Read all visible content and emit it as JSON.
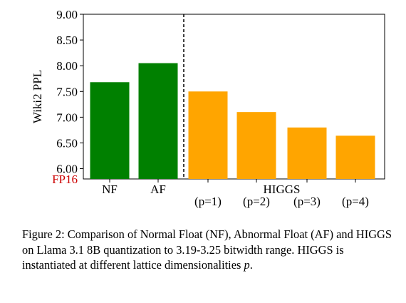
{
  "chart_data": {
    "type": "bar",
    "ylabel": "Wiki2 PPL",
    "baseline_label": "FP16",
    "colors": {
      "baseline_label": "#cc0000",
      "nf_af": "#008000",
      "higgs": "#ffa500"
    },
    "y_ticks": [
      "9.00",
      "8.50",
      "8.00",
      "7.50",
      "7.00",
      "6.50",
      "6.00"
    ],
    "y_tick_values": [
      9.0,
      8.5,
      8.0,
      7.5,
      7.0,
      6.5,
      6.0
    ],
    "ylim": [
      5.8,
      9.0
    ],
    "grid": false,
    "bars": [
      {
        "label": "NF",
        "value": 7.68,
        "color": "#008000"
      },
      {
        "label": "AF",
        "value": 8.05,
        "color": "#008000"
      },
      {
        "label": "(p=1)",
        "value": 7.5,
        "color": "#ffa500"
      },
      {
        "label": "(p=2)",
        "value": 7.1,
        "color": "#ffa500"
      },
      {
        "label": "(p=3)",
        "value": 6.8,
        "color": "#ffa500"
      },
      {
        "label": "(p=4)",
        "value": 6.64,
        "color": "#ffa500"
      }
    ],
    "group_label": "HIGGS",
    "divider": "dashed line between AF and HIGGS"
  },
  "caption": {
    "prefix": "Figure 2: Comparison of Normal Float (NF), Abnormal Float (AF) and HIGGS on Llama 3.1 8B quantization to 3.19-3.25 bitwidth range. HIGGS is instantiated at different lattice dimensionalities ",
    "variable": "p",
    "suffix": "."
  }
}
